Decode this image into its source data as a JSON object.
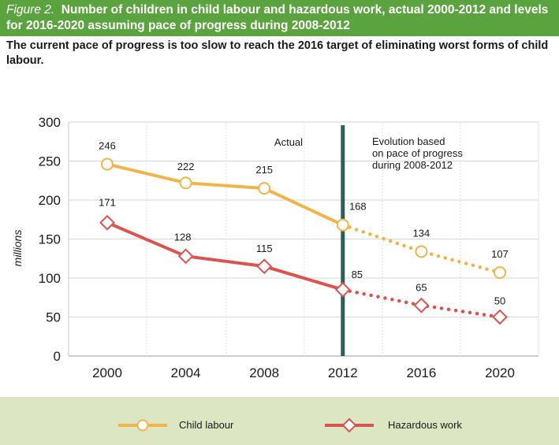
{
  "figure": {
    "label": "Figure 2.",
    "title": "Number of children in child labour and hazardous work, actual 2000-2012 and levels for 2016-2020 assuming pace of progress during 2008-2012",
    "subtitle": "The current pace of progress is too slow to reach the 2016 target of eliminating worst forms of child labour."
  },
  "colors": {
    "header_bg": "#5aa33e",
    "child_labour": "#f0b54a",
    "hazardous_work": "#d9544f",
    "divider": "#2d5e5a",
    "legend_bg": "#dde6c3"
  },
  "chart_data": {
    "type": "line",
    "x": [
      2000,
      2004,
      2008,
      2012,
      2016,
      2020
    ],
    "ylabel": "millions",
    "xlabel": "",
    "ylim": [
      0,
      300
    ],
    "yticks": [
      0,
      50,
      100,
      150,
      200,
      250,
      300
    ],
    "grid": true,
    "legend_position": "bottom",
    "actual_range": [
      2000,
      2012
    ],
    "projection_range": [
      2012,
      2020
    ],
    "series": [
      {
        "name": "Child labour",
        "values": [
          246,
          222,
          215,
          168,
          134,
          107
        ],
        "marker": "circle",
        "color": "#f0b54a"
      },
      {
        "name": "Hazardous work",
        "values": [
          171,
          128,
          115,
          85,
          65,
          50
        ],
        "marker": "diamond",
        "color": "#d9544f"
      }
    ],
    "annotations": {
      "actual": "Actual",
      "evolution": [
        "Evolution based",
        "on pace of progress",
        "during 2008-2012"
      ]
    }
  }
}
